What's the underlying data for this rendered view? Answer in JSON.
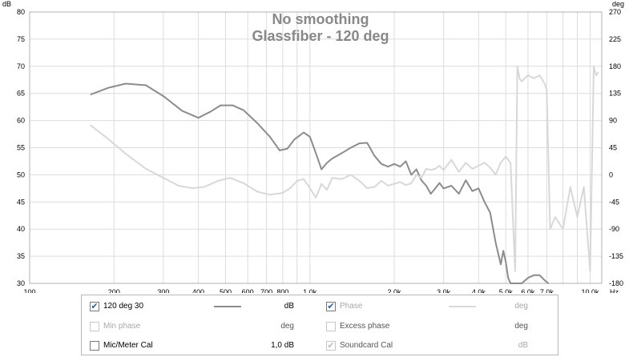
{
  "chart_data": {
    "type": "line",
    "title": "No smoothing",
    "subtitle": "Glassfiber - 120 deg",
    "xlabel": "",
    "x_unit": "Hz",
    "ylabel_left": "dB",
    "ylabel_right": "deg",
    "x_scale": "log",
    "xlim": [
      100,
      11000
    ],
    "ylim_left": [
      30,
      80
    ],
    "ylim_right": [
      -180,
      270
    ],
    "grid": true,
    "x_ticks": [
      {
        "v": 100,
        "t": "100"
      },
      {
        "v": 200,
        "t": "200"
      },
      {
        "v": 300,
        "t": "300"
      },
      {
        "v": 400,
        "t": "400"
      },
      {
        "v": 500,
        "t": "500"
      },
      {
        "v": 600,
        "t": "600"
      },
      {
        "v": 700,
        "t": "700"
      },
      {
        "v": 800,
        "t": "800"
      },
      {
        "v": 1000,
        "t": "1,0k"
      },
      {
        "v": 2000,
        "t": "2,0k"
      },
      {
        "v": 3000,
        "t": "3,0k"
      },
      {
        "v": 4000,
        "t": "4,0k"
      },
      {
        "v": 5000,
        "t": "5,0k"
      },
      {
        "v": 6000,
        "t": "6,0k"
      },
      {
        "v": 7000,
        "t": "7,0k"
      },
      {
        "v": 10000,
        "t": "10,0k"
      }
    ],
    "y_ticks_left": [
      30,
      35,
      40,
      45,
      50,
      55,
      60,
      65,
      70,
      75,
      80
    ],
    "y_ticks_right": [
      -180,
      -135,
      -90,
      -45,
      0,
      45,
      90,
      135,
      180,
      225,
      270
    ],
    "series": [
      {
        "name": "120 deg 30",
        "axis": "left",
        "color": "#8c8c8c",
        "x": [
          165,
          190,
          220,
          260,
          300,
          350,
          400,
          440,
          480,
          530,
          580,
          650,
          720,
          780,
          830,
          880,
          950,
          1000,
          1050,
          1100,
          1150,
          1200,
          1300,
          1400,
          1500,
          1600,
          1700,
          1800,
          1900,
          2000,
          2100,
          2200,
          2300,
          2400,
          2500,
          2600,
          2700,
          2800,
          2900,
          3000,
          3200,
          3400,
          3600,
          3800,
          4000,
          4200,
          4400,
          4600,
          4800,
          4900,
          5000,
          5100,
          5200,
          5300,
          5500,
          5700,
          6000,
          6300,
          6600,
          6900,
          7100
        ],
        "values": [
          64.8,
          66.0,
          66.8,
          66.5,
          64.5,
          61.8,
          60.5,
          61.6,
          62.8,
          62.8,
          61.9,
          59.5,
          57.0,
          54.5,
          54.8,
          56.5,
          57.8,
          57.0,
          54.0,
          51.0,
          52.2,
          53.0,
          54.0,
          55.0,
          55.8,
          55.9,
          53.5,
          52.0,
          51.5,
          52.0,
          51.5,
          52.5,
          50.0,
          51.0,
          49.0,
          48.0,
          46.5,
          47.5,
          48.5,
          47.5,
          48.0,
          46.5,
          49.0,
          47.0,
          47.5,
          45.0,
          43.0,
          37.5,
          33.5,
          36.0,
          34.0,
          31.0,
          30.0,
          30.0,
          30.0,
          30.0,
          31.0,
          31.5,
          31.5,
          30.5,
          30.0
        ]
      },
      {
        "name": "Phase",
        "axis": "right",
        "color": "#d8d8d8",
        "x": [
          165,
          190,
          220,
          260,
          300,
          340,
          380,
          420,
          470,
          520,
          580,
          650,
          720,
          800,
          850,
          900,
          950,
          1000,
          1050,
          1100,
          1150,
          1200,
          1300,
          1400,
          1500,
          1600,
          1700,
          1800,
          1900,
          2000,
          2100,
          2200,
          2300,
          2400,
          2500,
          2600,
          2700,
          2800,
          2900,
          3000,
          3200,
          3400,
          3600,
          3800,
          4000,
          4200,
          4400,
          4600,
          4800,
          5000,
          5200,
          5400,
          5500,
          5600,
          5700,
          6000,
          6300,
          6600,
          6900,
          7000,
          7200,
          7500,
          8000,
          8500,
          9000,
          9500,
          10000,
          10300,
          10500,
          10700
        ],
        "values": [
          82,
          60,
          35,
          10,
          -5,
          -18,
          -22,
          -20,
          -10,
          -5,
          -14,
          -28,
          -33,
          -30,
          -22,
          -10,
          -7,
          -22,
          -38,
          -15,
          -25,
          -5,
          -7,
          0,
          -10,
          -22,
          -20,
          -10,
          -18,
          -15,
          -12,
          -17,
          -14,
          0,
          -5,
          10,
          8,
          10,
          15,
          8,
          25,
          5,
          20,
          10,
          15,
          20,
          12,
          0,
          20,
          30,
          20,
          -160,
          180,
          160,
          155,
          165,
          160,
          165,
          150,
          140,
          -90,
          -70,
          -90,
          -20,
          -70,
          -20,
          -160,
          180,
          165,
          170
        ]
      }
    ],
    "legend": {
      "rows": [
        [
          {
            "label": "120 deg 30",
            "checked": true,
            "enabled": true,
            "value": "dB",
            "swatch": "#8c8c8c"
          },
          {
            "label": "Phase",
            "checked": true,
            "enabled": false,
            "value": "deg",
            "swatch": "#d8d8d8"
          }
        ],
        [
          {
            "label": "Min phase",
            "checked": false,
            "enabled": false,
            "value": "deg",
            "swatch": ""
          },
          {
            "label": "Excess phase",
            "checked": false,
            "enabled": false,
            "value": "deg",
            "swatch": ""
          }
        ],
        [
          {
            "label": "Mic/Meter Cal",
            "checked": false,
            "enabled": true,
            "value": "1,0 dB",
            "swatch": ""
          },
          {
            "label": "Soundcard Cal",
            "checked": true,
            "enabled": false,
            "value": "dB",
            "swatch": ""
          }
        ]
      ]
    }
  }
}
